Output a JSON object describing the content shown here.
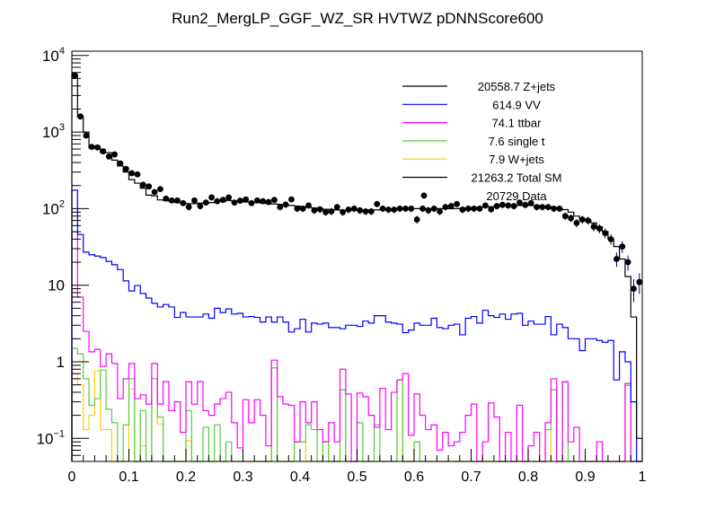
{
  "chart_data": {
    "type": "bar",
    "style": "stacked-step-histogram-with-data-points",
    "title": "Run2_MergLP_GGF_WZ_SR HVTWZ  pDNNScore600",
    "xlabel": "",
    "ylabel": "",
    "xlim": [
      0,
      1
    ],
    "ylim": [
      0.05,
      11500
    ],
    "yscale": "log",
    "bin_width": 0.01,
    "grid": false,
    "legend_position": "top-right",
    "x_tick_labels": [
      "0",
      "0.1",
      "0.2",
      "0.3",
      "0.4",
      "0.5",
      "0.6",
      "0.7",
      "0.8",
      "0.9",
      "1"
    ],
    "x_tick_values": [
      0,
      0.1,
      0.2,
      0.3,
      0.4,
      0.5,
      0.6,
      0.7,
      0.8,
      0.9,
      1
    ],
    "y_ticks": [
      {
        "value": 10000,
        "base": "10",
        "exp": "4"
      },
      {
        "value": 1000,
        "base": "10",
        "exp": "3"
      },
      {
        "value": 100,
        "base": "10",
        "exp": "2"
      },
      {
        "value": 10,
        "base": "10",
        "exp": ""
      },
      {
        "value": 1,
        "base": "1",
        "exp": ""
      },
      {
        "value": 0.1,
        "base": "10",
        "exp": "−1"
      }
    ],
    "stacked_cumulative": true,
    "series": [
      {
        "name": "Z+jets",
        "legend_label": "20558.7 Z+jets",
        "color": "#000000",
        "values": [
          5600,
          1580,
          1000,
          620,
          620,
          540,
          540,
          430,
          360,
          300,
          240,
          215,
          185,
          150,
          147,
          130,
          128,
          125,
          120,
          118,
          116,
          116,
          118,
          118,
          120,
          125,
          125,
          128,
          126,
          124,
          122,
          120,
          120,
          118,
          116,
          115,
          114,
          112,
          110,
          108,
          106,
          104,
          102,
          100,
          98,
          97,
          96,
          95,
          95,
          95,
          95,
          95,
          96,
          96,
          97,
          98,
          98,
          99,
          100,
          100,
          100,
          100,
          100,
          100,
          100,
          100,
          100,
          100,
          101,
          102,
          103,
          104,
          105,
          106,
          107,
          108,
          108,
          109,
          110,
          110,
          110,
          110,
          108,
          105,
          103,
          100,
          97,
          90,
          80,
          72,
          71,
          65,
          58,
          50,
          40,
          32,
          22,
          13,
          3.85,
          0.1
        ]
      },
      {
        "name": "VV",
        "legend_label": "614.9 VV",
        "color": "#0000ff",
        "values": [
          174,
          46,
          27,
          25,
          24,
          23,
          20.5,
          18.5,
          16,
          11.4,
          8.4,
          9.9,
          7.8,
          6.8,
          5.8,
          5.2,
          5.6,
          5.2,
          3.8,
          4.4,
          3.85,
          3.85,
          3.85,
          4.2,
          3.7,
          5,
          4.4,
          4.9,
          4.2,
          4.3,
          3.85,
          3.9,
          3.8,
          3.3,
          3.85,
          3.3,
          3.85,
          3.3,
          2.45,
          2.7,
          3.6,
          2.45,
          3.2,
          3.1,
          3.2,
          2.8,
          2.8,
          2.7,
          3,
          3,
          2.9,
          3.4,
          3.2,
          4,
          4,
          3.3,
          3.2,
          3.1,
          2.4,
          2.6,
          3.2,
          3,
          3,
          3.7,
          2.8,
          2.7,
          3,
          3.1,
          2.25,
          3.7,
          3.9,
          3.2,
          4.7,
          4,
          3.8,
          4.2,
          3.6,
          4.2,
          4.3,
          3,
          3.4,
          3.1,
          3.1,
          3.9,
          2.25,
          3.1,
          2.8,
          2,
          2,
          1.4,
          2,
          2,
          1.9,
          1.8,
          1.9,
          0.58,
          1.35,
          1.0,
          0.3,
          0
        ]
      },
      {
        "name": "ttbar",
        "legend_label": "74.1 ttbar",
        "color": "#ff00ff",
        "values": [
          50,
          7,
          2.5,
          1.35,
          1.45,
          0.87,
          1.27,
          0.95,
          0.33,
          0.6,
          0.95,
          0.33,
          0.37,
          0.28,
          0.95,
          0.28,
          0.55,
          0.23,
          0.3,
          0.12,
          0.55,
          0.28,
          0.55,
          0.23,
          0.2,
          0.28,
          0.33,
          0.4,
          0.16,
          0.075,
          0.32,
          0.16,
          0.32,
          0.2,
          0.08,
          1.05,
          0.35,
          0.28,
          0.27,
          0.09,
          0.3,
          0.16,
          0.3,
          0.13,
          0.09,
          0.16,
          0.09,
          0.8,
          0.38,
          0,
          0.39,
          0.35,
          0.2,
          0.14,
          0.45,
          0.13,
          0.4,
          0.58,
          0.7,
          0.11,
          0.38,
          0.2,
          0.13,
          0.15,
          0.07,
          0.12,
          0.08,
          0.09,
          0.12,
          0.2,
          0.28,
          0,
          0.09,
          0.29,
          0.19,
          0,
          0.12,
          0,
          0.27,
          0,
          0.08,
          0.12,
          0,
          0.16,
          0.6,
          0,
          0.55,
          0.09,
          0.14,
          0,
          0,
          0,
          0.09,
          0,
          0,
          0,
          0,
          0.52,
          0,
          0
        ]
      },
      {
        "name": "single t",
        "legend_label": "7.6 single t",
        "color": "#55cc44",
        "values": [
          1.5,
          1.27,
          0.6,
          0.27,
          0.33,
          0.78,
          0.24,
          0.16,
          0,
          0.15,
          0.6,
          0,
          0.23,
          0,
          0.6,
          0.19,
          0.05,
          0,
          0,
          0,
          0.23,
          0,
          0,
          0.14,
          0,
          0.15,
          0,
          0.09,
          0,
          0,
          0,
          0,
          0,
          0,
          0,
          0.83,
          0,
          0,
          0,
          0.09,
          0.09,
          0.15,
          0.13,
          0,
          0.09,
          0,
          0,
          0.43,
          0,
          0,
          0.16,
          0,
          0,
          0.15,
          0,
          0,
          0,
          0.58,
          0,
          0,
          0.09,
          0,
          0,
          0,
          0,
          0,
          0,
          0,
          0,
          0,
          0,
          0,
          0,
          0,
          0,
          0,
          0,
          0,
          0,
          0,
          0,
          0,
          0,
          0.13,
          0.43,
          0,
          0.55,
          0,
          0,
          0,
          0,
          0,
          0,
          0,
          0,
          0,
          0,
          0.49,
          0,
          0
        ]
      },
      {
        "name": "W+jets",
        "legend_label": "7.9 W+jets",
        "color": "#ffcc00",
        "values": [
          0.7,
          0.5,
          0.13,
          0.2,
          0.76,
          0.13,
          0.13,
          0,
          0,
          0,
          0.44,
          0,
          0.08,
          0,
          0.6,
          0.155,
          0,
          0,
          0,
          0,
          0.093,
          0,
          0,
          0,
          0,
          0,
          0,
          0,
          0,
          0,
          0,
          0,
          0,
          0,
          0,
          0.83,
          0,
          0,
          0,
          0.09,
          0.09,
          0,
          0,
          0,
          0.09,
          0,
          0,
          0.43,
          0,
          0,
          0,
          0,
          0,
          0,
          0,
          0,
          0,
          0.58,
          0,
          0,
          0.09,
          0,
          0,
          0,
          0,
          0,
          0,
          0,
          0,
          0,
          0,
          0,
          0,
          0,
          0,
          0,
          0,
          0,
          0,
          0,
          0,
          0,
          0,
          0,
          0.43,
          0,
          0,
          0,
          0,
          0,
          0,
          0,
          0,
          0,
          0,
          0,
          0,
          0.49,
          0,
          0
        ]
      }
    ],
    "total_sm": {
      "legend_label": "21263.2 Total SM",
      "color": "#000000"
    },
    "data_points": {
      "legend_label": "20729 Data",
      "color": "#000000",
      "error_color": "#000066",
      "values": [
        5500,
        1600,
        900,
        640,
        630,
        560,
        480,
        510,
        390,
        330,
        290,
        280,
        205,
        195,
        165,
        180,
        135,
        128,
        128,
        118,
        105,
        128,
        108,
        120,
        140,
        125,
        130,
        140,
        120,
        127,
        132,
        118,
        128,
        125,
        122,
        130,
        105,
        113,
        132,
        100,
        100,
        110,
        95,
        98,
        90,
        92,
        105,
        90,
        97,
        100,
        95,
        92,
        92,
        115,
        100,
        97,
        97,
        100,
        100,
        100,
        72,
        100,
        95,
        100,
        92,
        105,
        108,
        115,
        97,
        100,
        100,
        100,
        110,
        98,
        108,
        112,
        110,
        108,
        120,
        112,
        118,
        105,
        105,
        105,
        100,
        100,
        80,
        75,
        65,
        72,
        70,
        58,
        55,
        48,
        40,
        22,
        32,
        20,
        9,
        11
      ]
    }
  }
}
